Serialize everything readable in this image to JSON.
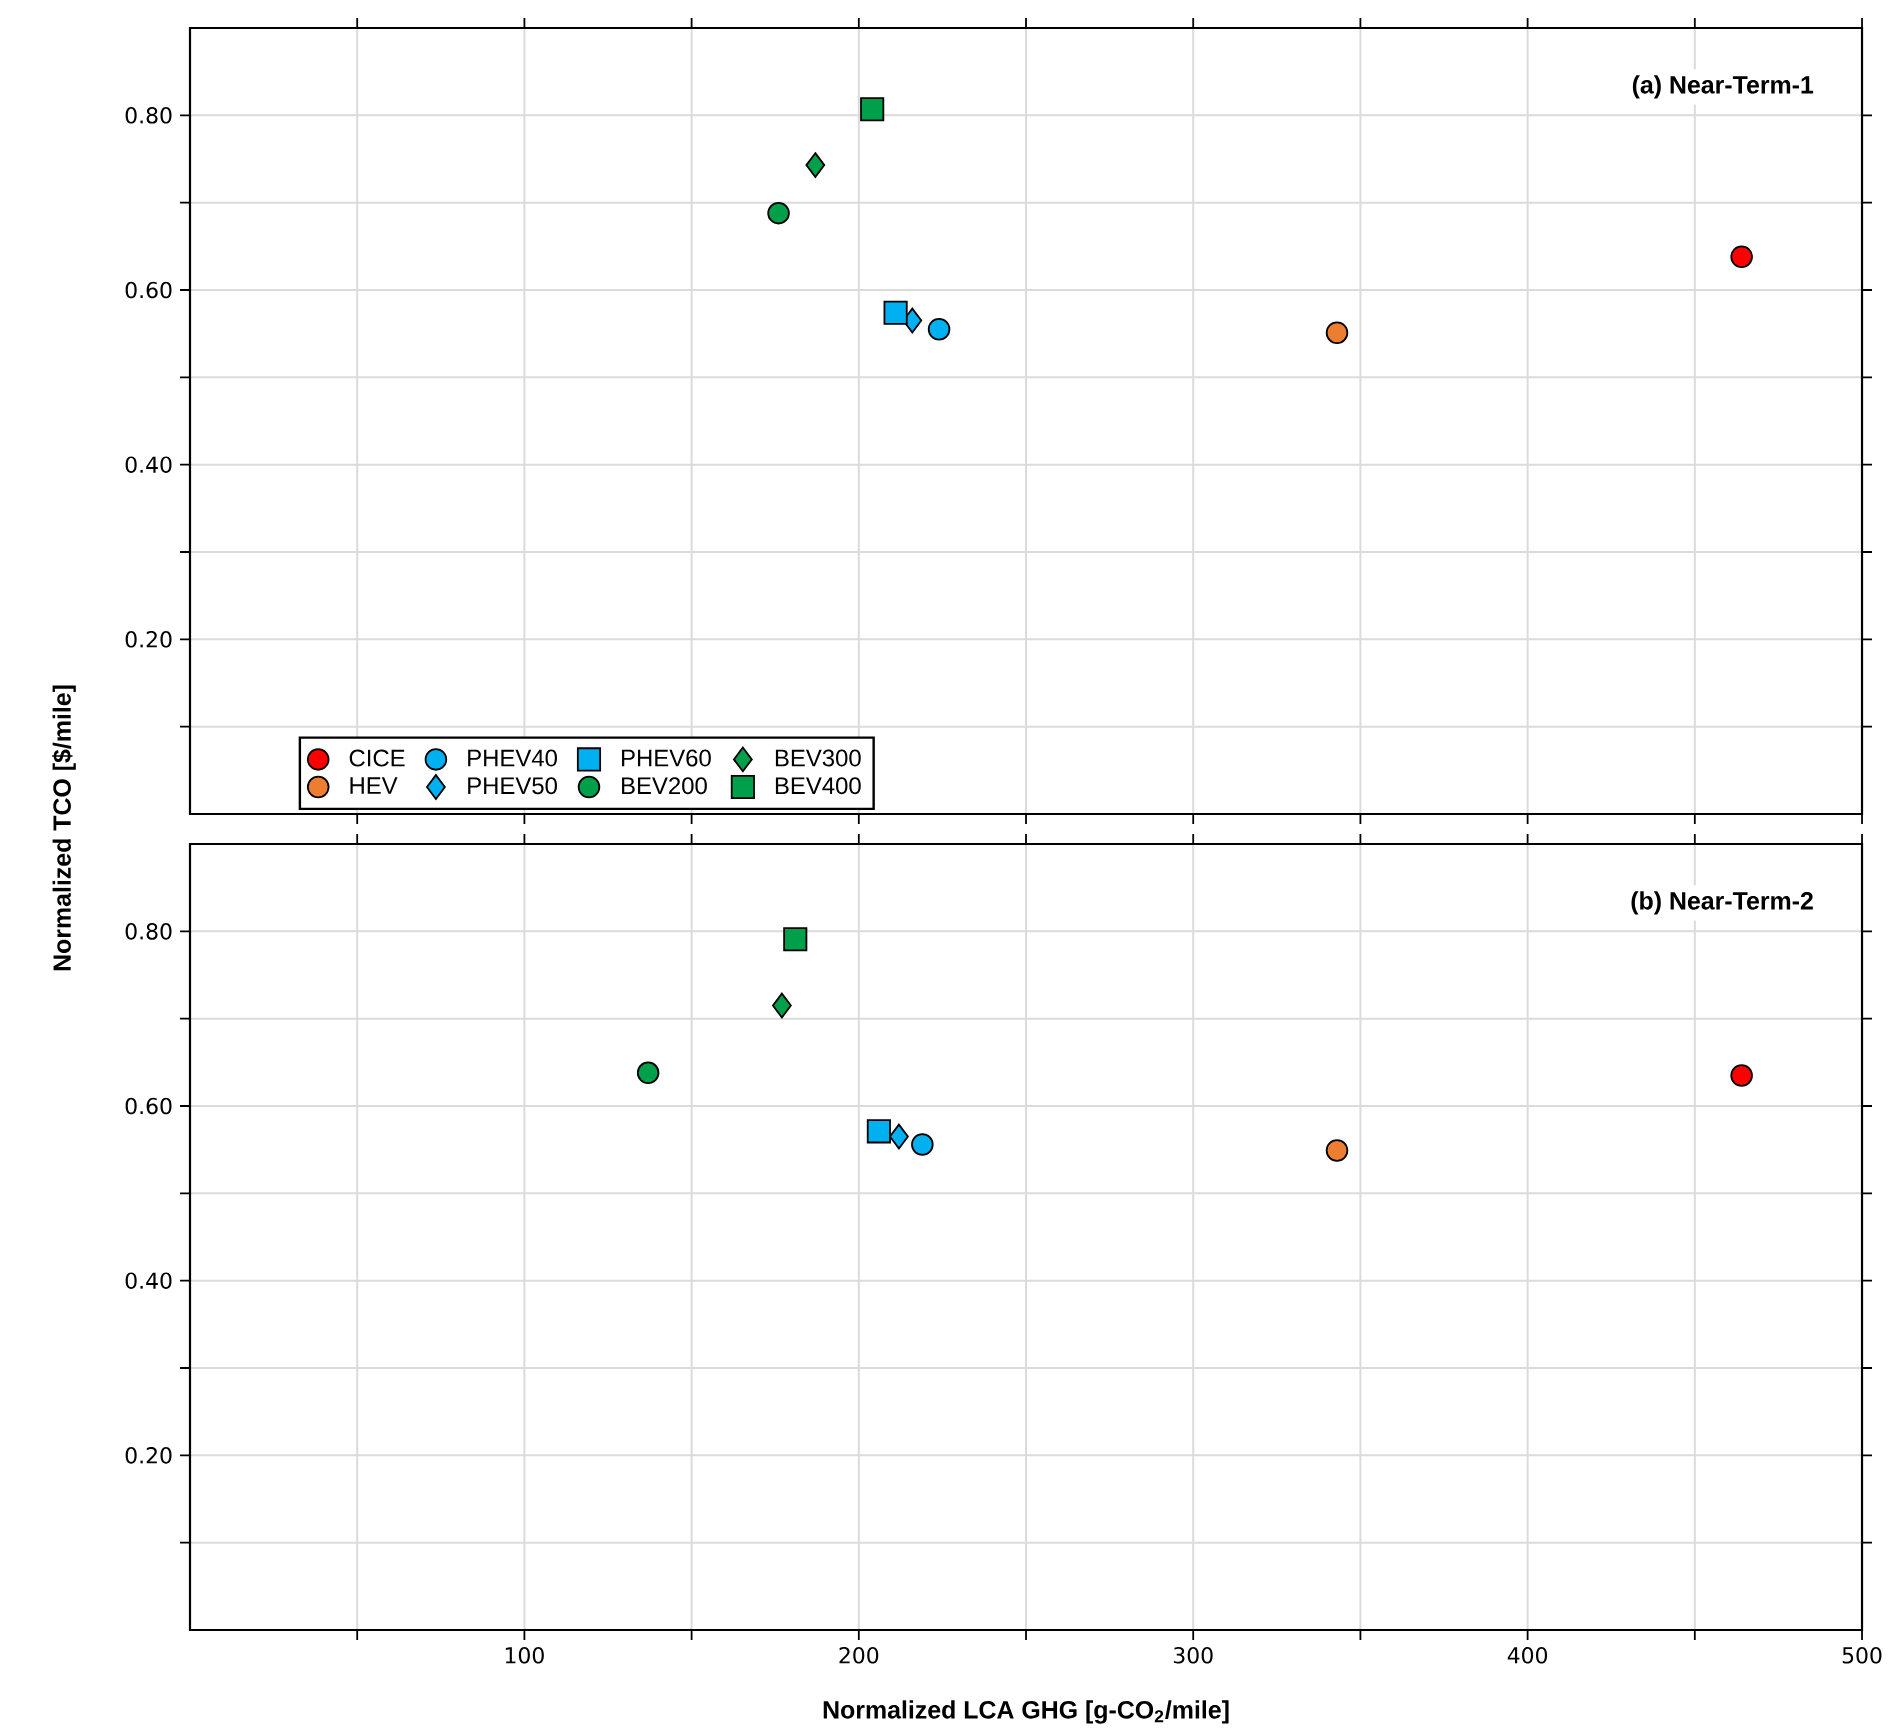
{
  "chart_data": [
    {
      "type": "scatter",
      "title": "(a) Near-Term-1",
      "ylabel": "Normalized TCO [$/mile]",
      "xlim": [
        0,
        500
      ],
      "ylim": [
        0,
        0.9
      ],
      "xticks": [
        {
          "value": 50,
          "label": null
        },
        100,
        {
          "value": 150,
          "label": null
        },
        200,
        {
          "value": 250,
          "label": null
        },
        300,
        {
          "value": 350,
          "label": null
        },
        400,
        {
          "value": 450,
          "label": null
        },
        500
      ],
      "yticks": [
        {
          "value": 0.1,
          "label": null
        },
        {
          "value": 0.2,
          "label": "0.20"
        },
        {
          "value": 0.3,
          "label": null
        },
        {
          "value": 0.4,
          "label": "0.40"
        },
        {
          "value": 0.5,
          "label": null
        },
        {
          "value": 0.6,
          "label": "0.60"
        },
        {
          "value": 0.7,
          "label": null
        },
        {
          "value": 0.8,
          "label": "0.80"
        }
      ],
      "tick_labels": "y",
      "grid": true,
      "legend": "bottom left",
      "series": [
        {
          "name": "CICE",
          "color": "#ff0000",
          "marker": "circle",
          "x": [
            464
          ],
          "values": [
            0.638
          ]
        },
        {
          "name": "HEV",
          "color": "#ed7d31",
          "marker": "circle",
          "x": [
            343
          ],
          "values": [
            0.551
          ]
        },
        {
          "name": "PHEV40",
          "color": "#00b0f0",
          "marker": "circle",
          "x": [
            224
          ],
          "values": [
            0.555
          ]
        },
        {
          "name": "PHEV50",
          "color": "#00b0f0",
          "marker": "diamond",
          "x": [
            216
          ],
          "values": [
            0.565
          ]
        },
        {
          "name": "PHEV60",
          "color": "#00b0f0",
          "marker": "square",
          "x": [
            211
          ],
          "values": [
            0.574
          ]
        },
        {
          "name": "BEV200",
          "color": "#00a04a",
          "marker": "circle",
          "x": [
            176
          ],
          "values": [
            0.688
          ]
        },
        {
          "name": "BEV300",
          "color": "#00a04a",
          "marker": "diamond",
          "x": [
            187
          ],
          "values": [
            0.743
          ]
        },
        {
          "name": "BEV400",
          "color": "#00a04a",
          "marker": "square",
          "x": [
            204
          ],
          "values": [
            0.807
          ]
        }
      ]
    },
    {
      "type": "scatter",
      "title": "(b) Near-Term-2",
      "xlabel": "Normalized LCA GHG [g-CO$_{2}$/mile]",
      "xlim": [
        0,
        500
      ],
      "ylim": [
        0,
        0.9
      ],
      "xticks": [
        {
          "value": 50,
          "label": null
        },
        100,
        {
          "value": 150,
          "label": null
        },
        200,
        {
          "value": 250,
          "label": null
        },
        300,
        {
          "value": 350,
          "label": null
        },
        400,
        {
          "value": 450,
          "label": null
        },
        500
      ],
      "yticks": [
        {
          "value": 0.1,
          "label": null
        },
        {
          "value": 0.2,
          "label": "0.20"
        },
        {
          "value": 0.3,
          "label": null
        },
        {
          "value": 0.4,
          "label": "0.40"
        },
        {
          "value": 0.5,
          "label": null
        },
        {
          "value": 0.6,
          "label": "0.60"
        },
        {
          "value": 0.7,
          "label": null
        },
        {
          "value": 0.8,
          "label": "0.80"
        }
      ],
      "grid": true,
      "series": [
        {
          "color": "#ff0000",
          "marker": "circle",
          "x": [
            464
          ],
          "values": [
            0.635
          ]
        },
        {
          "color": "#ed7d31",
          "marker": "circle",
          "x": [
            343
          ],
          "values": [
            0.549
          ]
        },
        {
          "color": "#00b0f0",
          "marker": "circle",
          "x": [
            219
          ],
          "values": [
            0.556
          ]
        },
        {
          "color": "#00b0f0",
          "marker": "diamond",
          "x": [
            212
          ],
          "values": [
            0.565
          ]
        },
        {
          "color": "#00b0f0",
          "marker": "square",
          "x": [
            206
          ],
          "values": [
            0.571
          ]
        },
        {
          "color": "#00a04a",
          "marker": "circle",
          "x": [
            137
          ],
          "values": [
            0.638
          ]
        },
        {
          "color": "#00a04a",
          "marker": "diamond",
          "x": [
            177
          ],
          "values": [
            0.715
          ]
        },
        {
          "color": "#00a04a",
          "marker": "square",
          "x": [
            181
          ],
          "values": [
            0.791
          ]
        }
      ]
    }
  ]
}
